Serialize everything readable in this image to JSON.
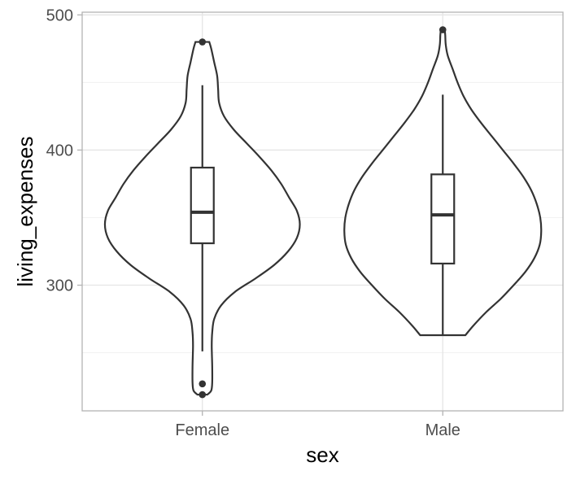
{
  "chart_data": {
    "type": "violin",
    "xlabel": "sex",
    "ylabel": "living_expenses",
    "ylim": [
      207,
      502
    ],
    "y_ticks": [
      300,
      400,
      500
    ],
    "grid": true,
    "categories": [
      "Female",
      "Male"
    ],
    "groups": [
      {
        "name": "Female",
        "violin": {
          "min": 219,
          "max": 480,
          "density": [
            [
              219,
              0.05
            ],
            [
              222,
              0.09
            ],
            [
              228,
              0.1
            ],
            [
              240,
              0.1
            ],
            [
              255,
              0.095
            ],
            [
              265,
              0.1
            ],
            [
              275,
              0.12
            ],
            [
              285,
              0.19
            ],
            [
              295,
              0.33
            ],
            [
              305,
              0.54
            ],
            [
              315,
              0.73
            ],
            [
              325,
              0.87
            ],
            [
              335,
              0.96
            ],
            [
              345,
              0.99
            ],
            [
              355,
              0.96
            ],
            [
              365,
              0.88
            ],
            [
              375,
              0.8
            ],
            [
              385,
              0.7
            ],
            [
              395,
              0.58
            ],
            [
              405,
              0.45
            ],
            [
              415,
              0.32
            ],
            [
              425,
              0.22
            ],
            [
              435,
              0.17
            ],
            [
              445,
              0.16
            ],
            [
              455,
              0.15
            ],
            [
              465,
              0.12
            ],
            [
              475,
              0.09
            ],
            [
              480,
              0.07
            ]
          ]
        },
        "box": {
          "q1": 331,
          "median": 354,
          "q3": 387,
          "whisker_low": 251,
          "whisker_high": 448
        },
        "outliers": [
          219,
          227,
          480
        ]
      },
      {
        "name": "Male",
        "violin": {
          "min": 263,
          "max": 489,
          "density": [
            [
              263,
              0.23
            ],
            [
              270,
              0.31
            ],
            [
              280,
              0.44
            ],
            [
              290,
              0.59
            ],
            [
              300,
              0.72
            ],
            [
              310,
              0.84
            ],
            [
              320,
              0.93
            ],
            [
              330,
              0.985
            ],
            [
              340,
              1.0
            ],
            [
              350,
              0.99
            ],
            [
              360,
              0.955
            ],
            [
              370,
              0.9
            ],
            [
              380,
              0.82
            ],
            [
              390,
              0.72
            ],
            [
              400,
              0.61
            ],
            [
              410,
              0.5
            ],
            [
              420,
              0.39
            ],
            [
              430,
              0.29
            ],
            [
              440,
              0.21
            ],
            [
              450,
              0.15
            ],
            [
              460,
              0.1
            ],
            [
              470,
              0.05
            ],
            [
              478,
              0.03
            ],
            [
              485,
              0.025
            ],
            [
              489,
              0.02
            ]
          ]
        },
        "box": {
          "q1": 316,
          "median": 352,
          "q3": 382,
          "whisker_low": 263,
          "whisker_high": 441
        },
        "outliers": [
          489
        ]
      }
    ]
  }
}
